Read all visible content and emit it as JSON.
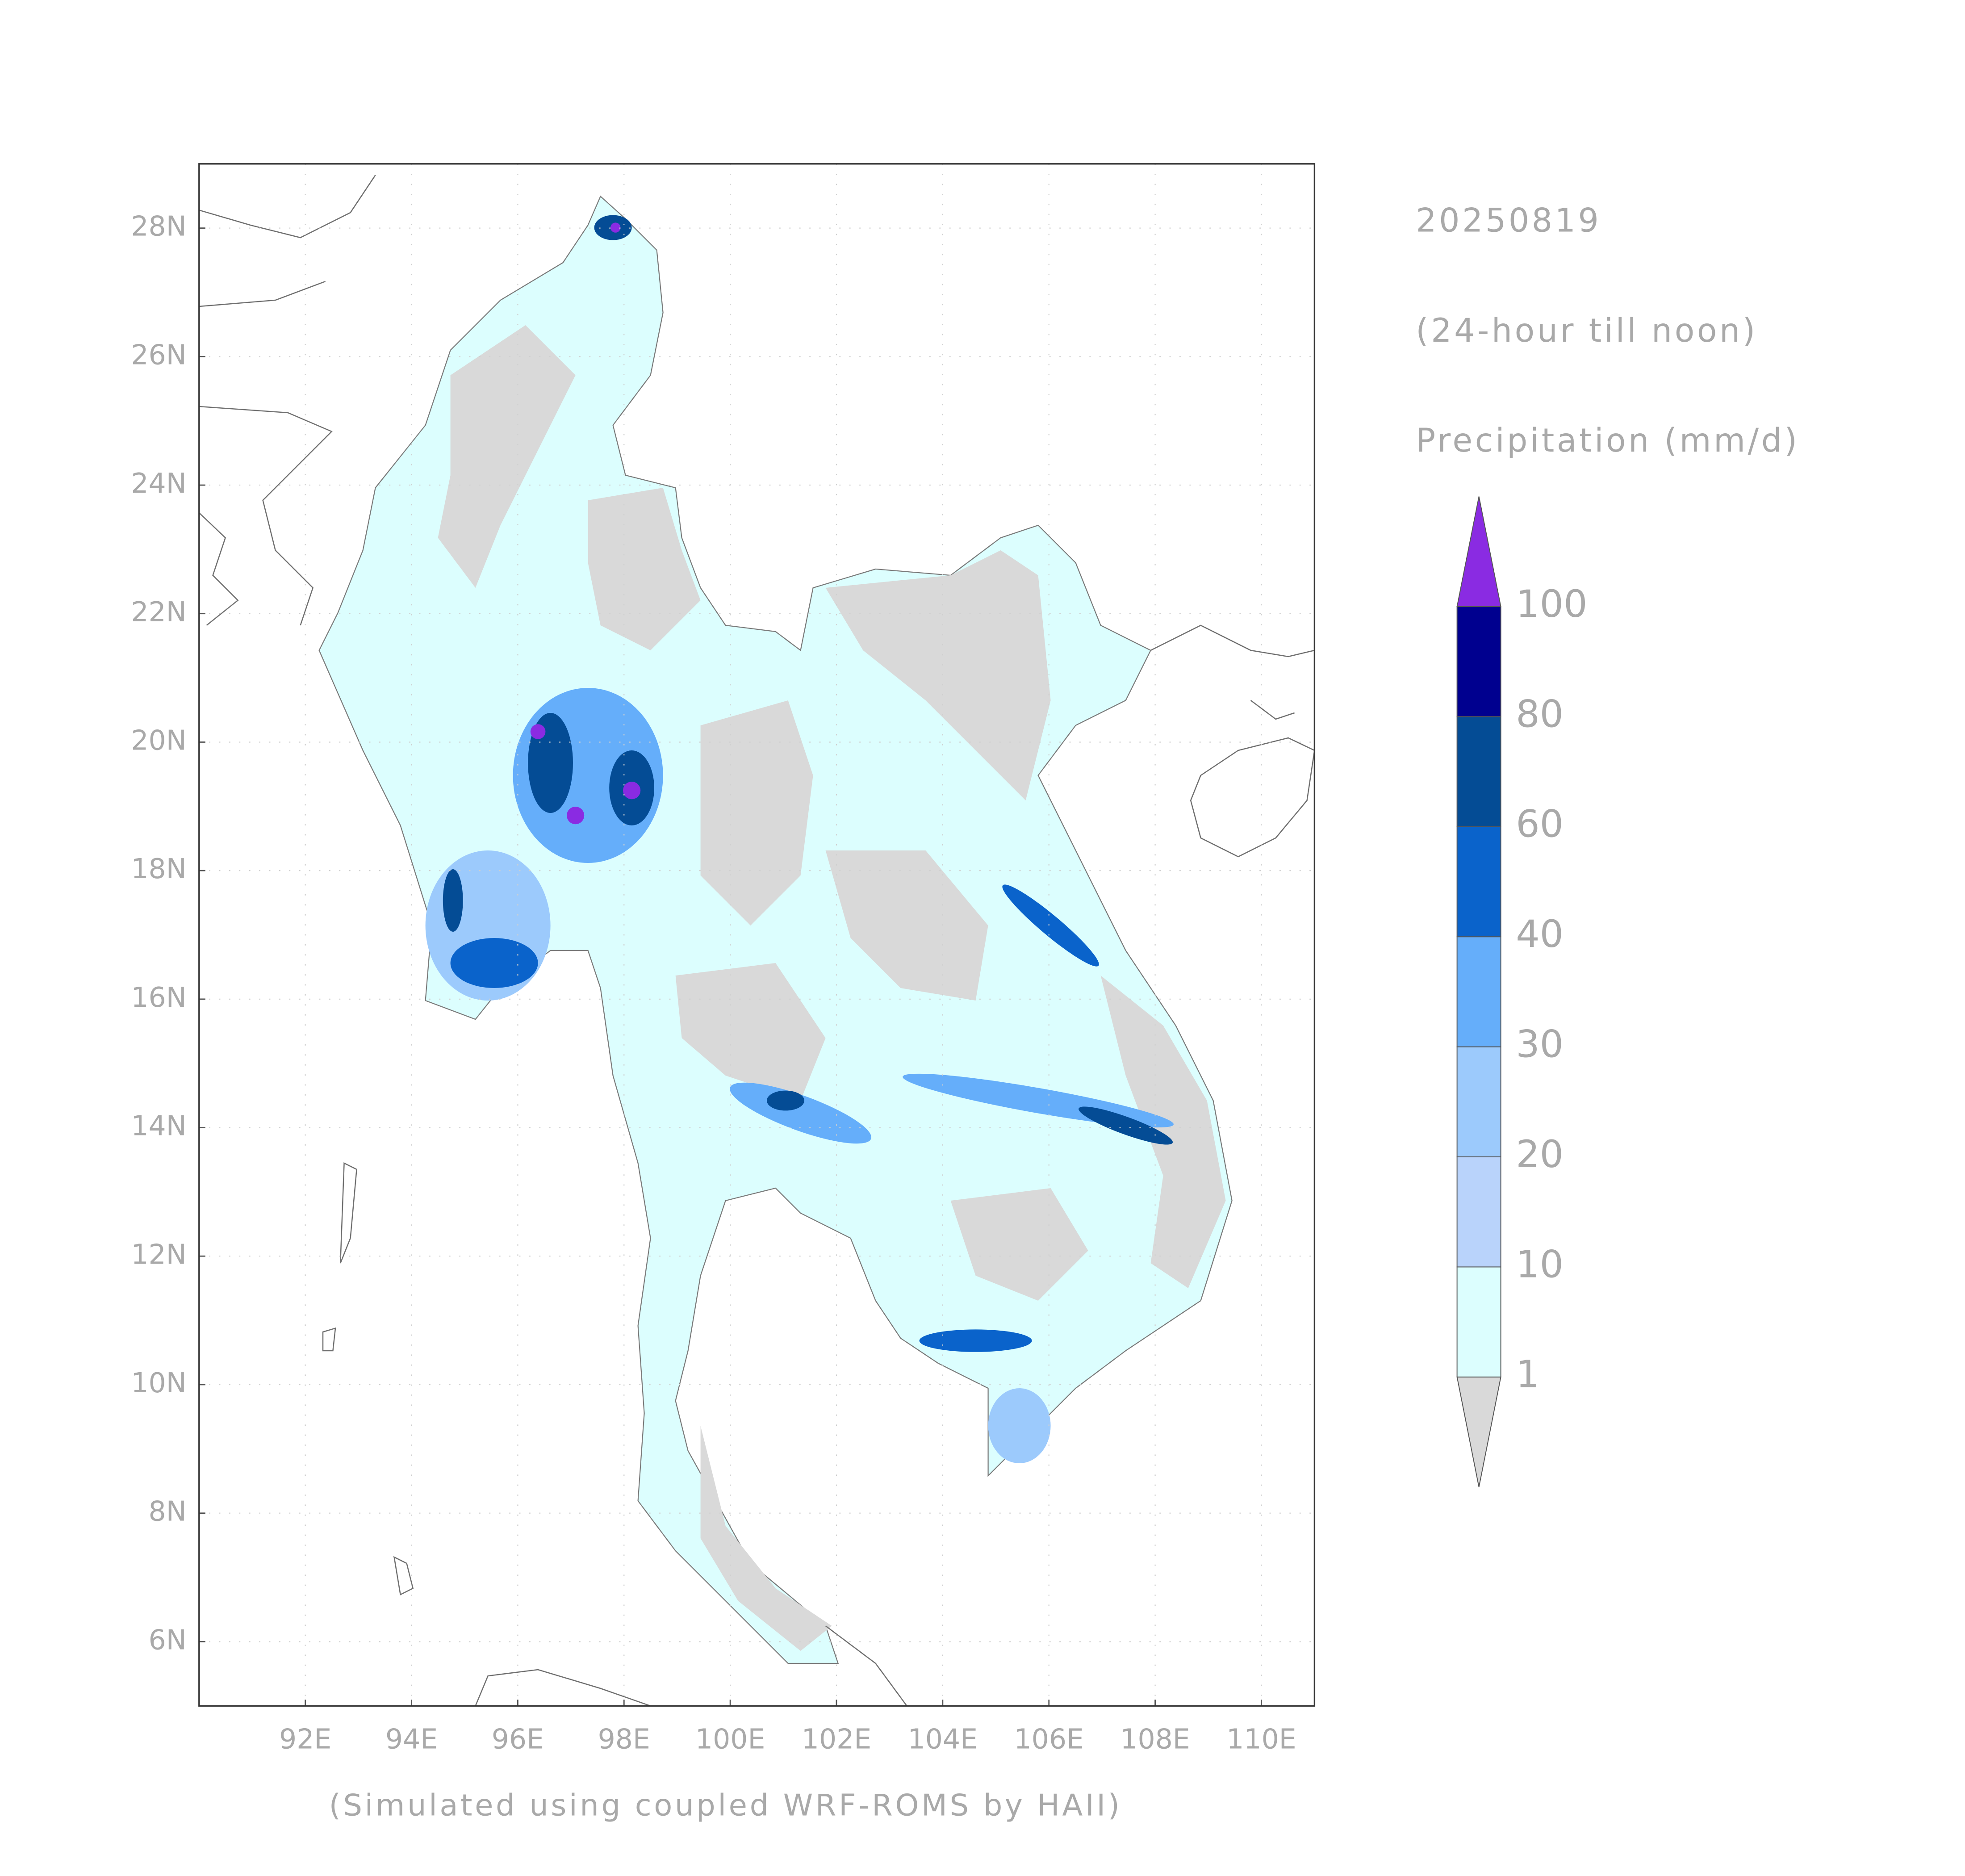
{
  "header": {
    "date": "20250819",
    "period": "(24-hour till noon)",
    "variable": "Precipitation (mm/d)"
  },
  "footer": "(Simulated using coupled WRF-ROMS by HAII)",
  "map": {
    "xlim": [
      90,
      111
    ],
    "ylim": [
      5,
      29
    ],
    "grid": true,
    "xticks": [
      {
        "value": 92,
        "label": "92E"
      },
      {
        "value": 94,
        "label": "94E"
      },
      {
        "value": 96,
        "label": "96E"
      },
      {
        "value": 98,
        "label": "98E"
      },
      {
        "value": 100,
        "label": "100E"
      },
      {
        "value": 102,
        "label": "102E"
      },
      {
        "value": 104,
        "label": "104E"
      },
      {
        "value": 106,
        "label": "106E"
      },
      {
        "value": 108,
        "label": "108E"
      },
      {
        "value": 110,
        "label": "110E"
      }
    ],
    "yticks": [
      {
        "value": 6,
        "label": "6N"
      },
      {
        "value": 8,
        "label": "8N"
      },
      {
        "value": 10,
        "label": "10N"
      },
      {
        "value": 12,
        "label": "12N"
      },
      {
        "value": 14,
        "label": "14N"
      },
      {
        "value": 16,
        "label": "16N"
      },
      {
        "value": 18,
        "label": "18N"
      },
      {
        "value": 20,
        "label": "20N"
      },
      {
        "value": 22,
        "label": "22N"
      },
      {
        "value": 24,
        "label": "24N"
      },
      {
        "value": 26,
        "label": "26N"
      },
      {
        "value": 28,
        "label": "28N"
      }
    ]
  },
  "colorbar": {
    "levels": [
      1,
      10,
      20,
      30,
      40,
      60,
      80,
      100
    ],
    "colors": [
      "#d9d9d9",
      "#dcfefe",
      "#b9d3fb",
      "#9ccafc",
      "#65aefa",
      "#0a63cb",
      "#044c95",
      "#00008f",
      "#8a2be2"
    ]
  }
}
